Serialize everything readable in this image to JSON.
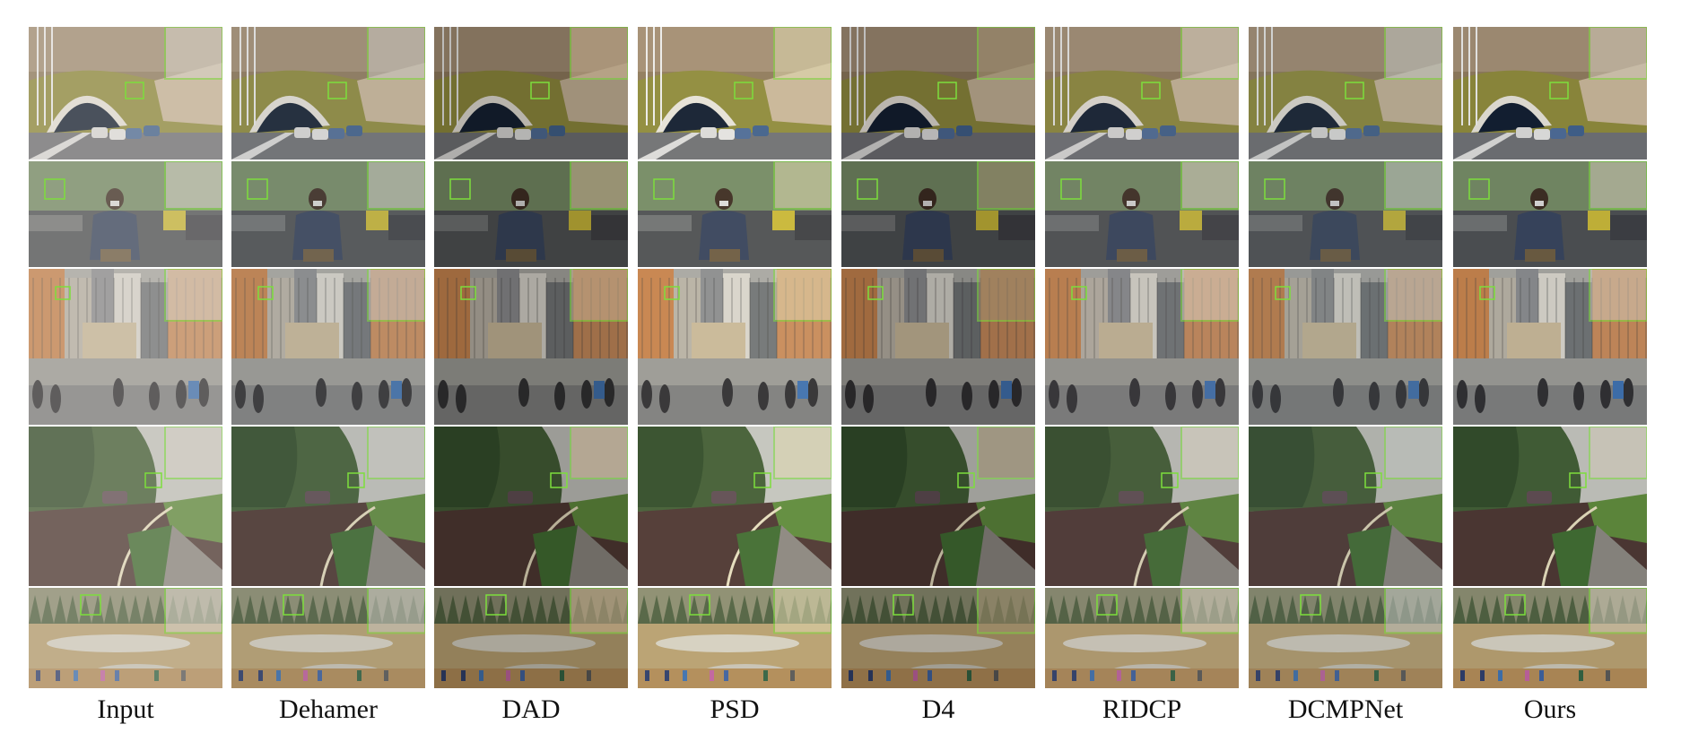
{
  "labels": {
    "input": "Input",
    "dehamer": "Dehamer",
    "dad": "DAD",
    "psd": "PSD",
    "d4": "D4",
    "ridcp": "RIDCP",
    "dcmpnet": "DCMPNet",
    "ours": "Ours"
  },
  "colors": {
    "zoom_box": "#7dde3c"
  }
}
